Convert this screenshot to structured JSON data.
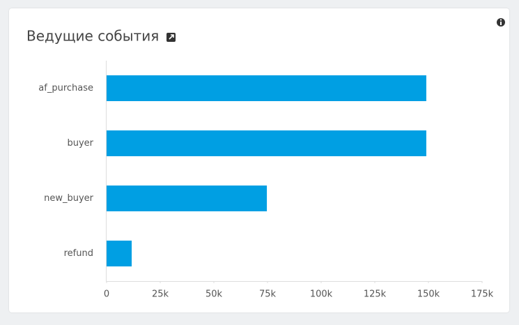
{
  "chart_data": {
    "type": "bar",
    "orientation": "horizontal",
    "title": "Ведущие события",
    "categories": [
      "af_purchase",
      "buyer",
      "new_buyer",
      "refund"
    ],
    "values": [
      149000,
      149000,
      74700,
      11700
    ],
    "color": "#009fe3",
    "xlim": [
      0,
      175000
    ],
    "xticks": [
      0,
      {
        "value": 25000,
        "label": "25k"
      },
      {
        "value": 50000,
        "label": "50k"
      },
      {
        "value": 75000,
        "label": "75k"
      },
      {
        "value": 100000,
        "label": "100k"
      },
      {
        "value": 125000,
        "label": "125k"
      },
      {
        "value": 150000,
        "label": "150k"
      },
      {
        "value": 175000,
        "label": "175k"
      }
    ],
    "grid": false
  }
}
